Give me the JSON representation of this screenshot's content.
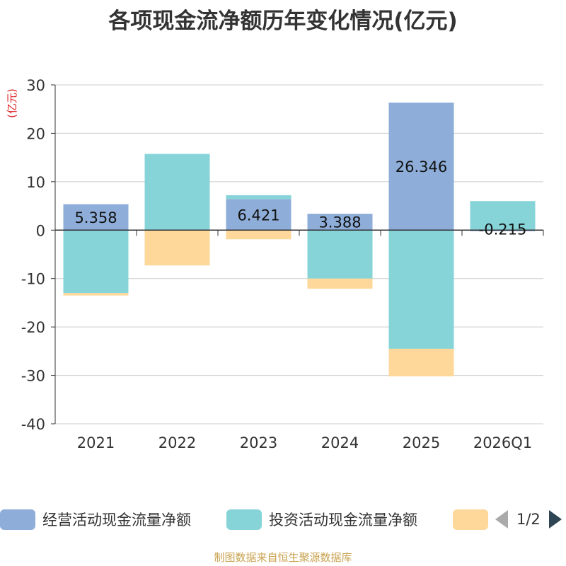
{
  "chart_data": {
    "type": "bar",
    "stacked": true,
    "title": "各项现金流净额历年变化情况(亿元)",
    "ylabel": "(亿元)",
    "xlabel": "",
    "ylim": [
      -40,
      30
    ],
    "yticks": [
      30,
      20,
      10,
      0,
      -10,
      -20,
      -30,
      -40
    ],
    "categories": [
      "2021",
      "2022",
      "2023",
      "2024",
      "2025",
      "2026Q1"
    ],
    "series": [
      {
        "name": "经营活动现金流量净额",
        "color": "#8eaed9",
        "values": [
          5.358,
          0.05,
          6.421,
          3.388,
          26.346,
          -0.215
        ],
        "labels": [
          "5.358",
          "",
          "6.421",
          "3.388",
          "26.346",
          "-0.215"
        ]
      },
      {
        "name": "投资活动现金流量净额",
        "color": "#86d4d8",
        "values": [
          -13.0,
          15.7,
          0.8,
          -10.0,
          -24.5,
          6.0
        ]
      },
      {
        "name": "",
        "color": "#fed89a",
        "values": [
          -0.5,
          -7.3,
          -1.9,
          -2.1,
          -5.7,
          0
        ]
      }
    ],
    "legend": {
      "position": "bottom",
      "page": "1/2"
    }
  },
  "footer": {
    "source": "制图数据来自恒生聚源数据库"
  }
}
